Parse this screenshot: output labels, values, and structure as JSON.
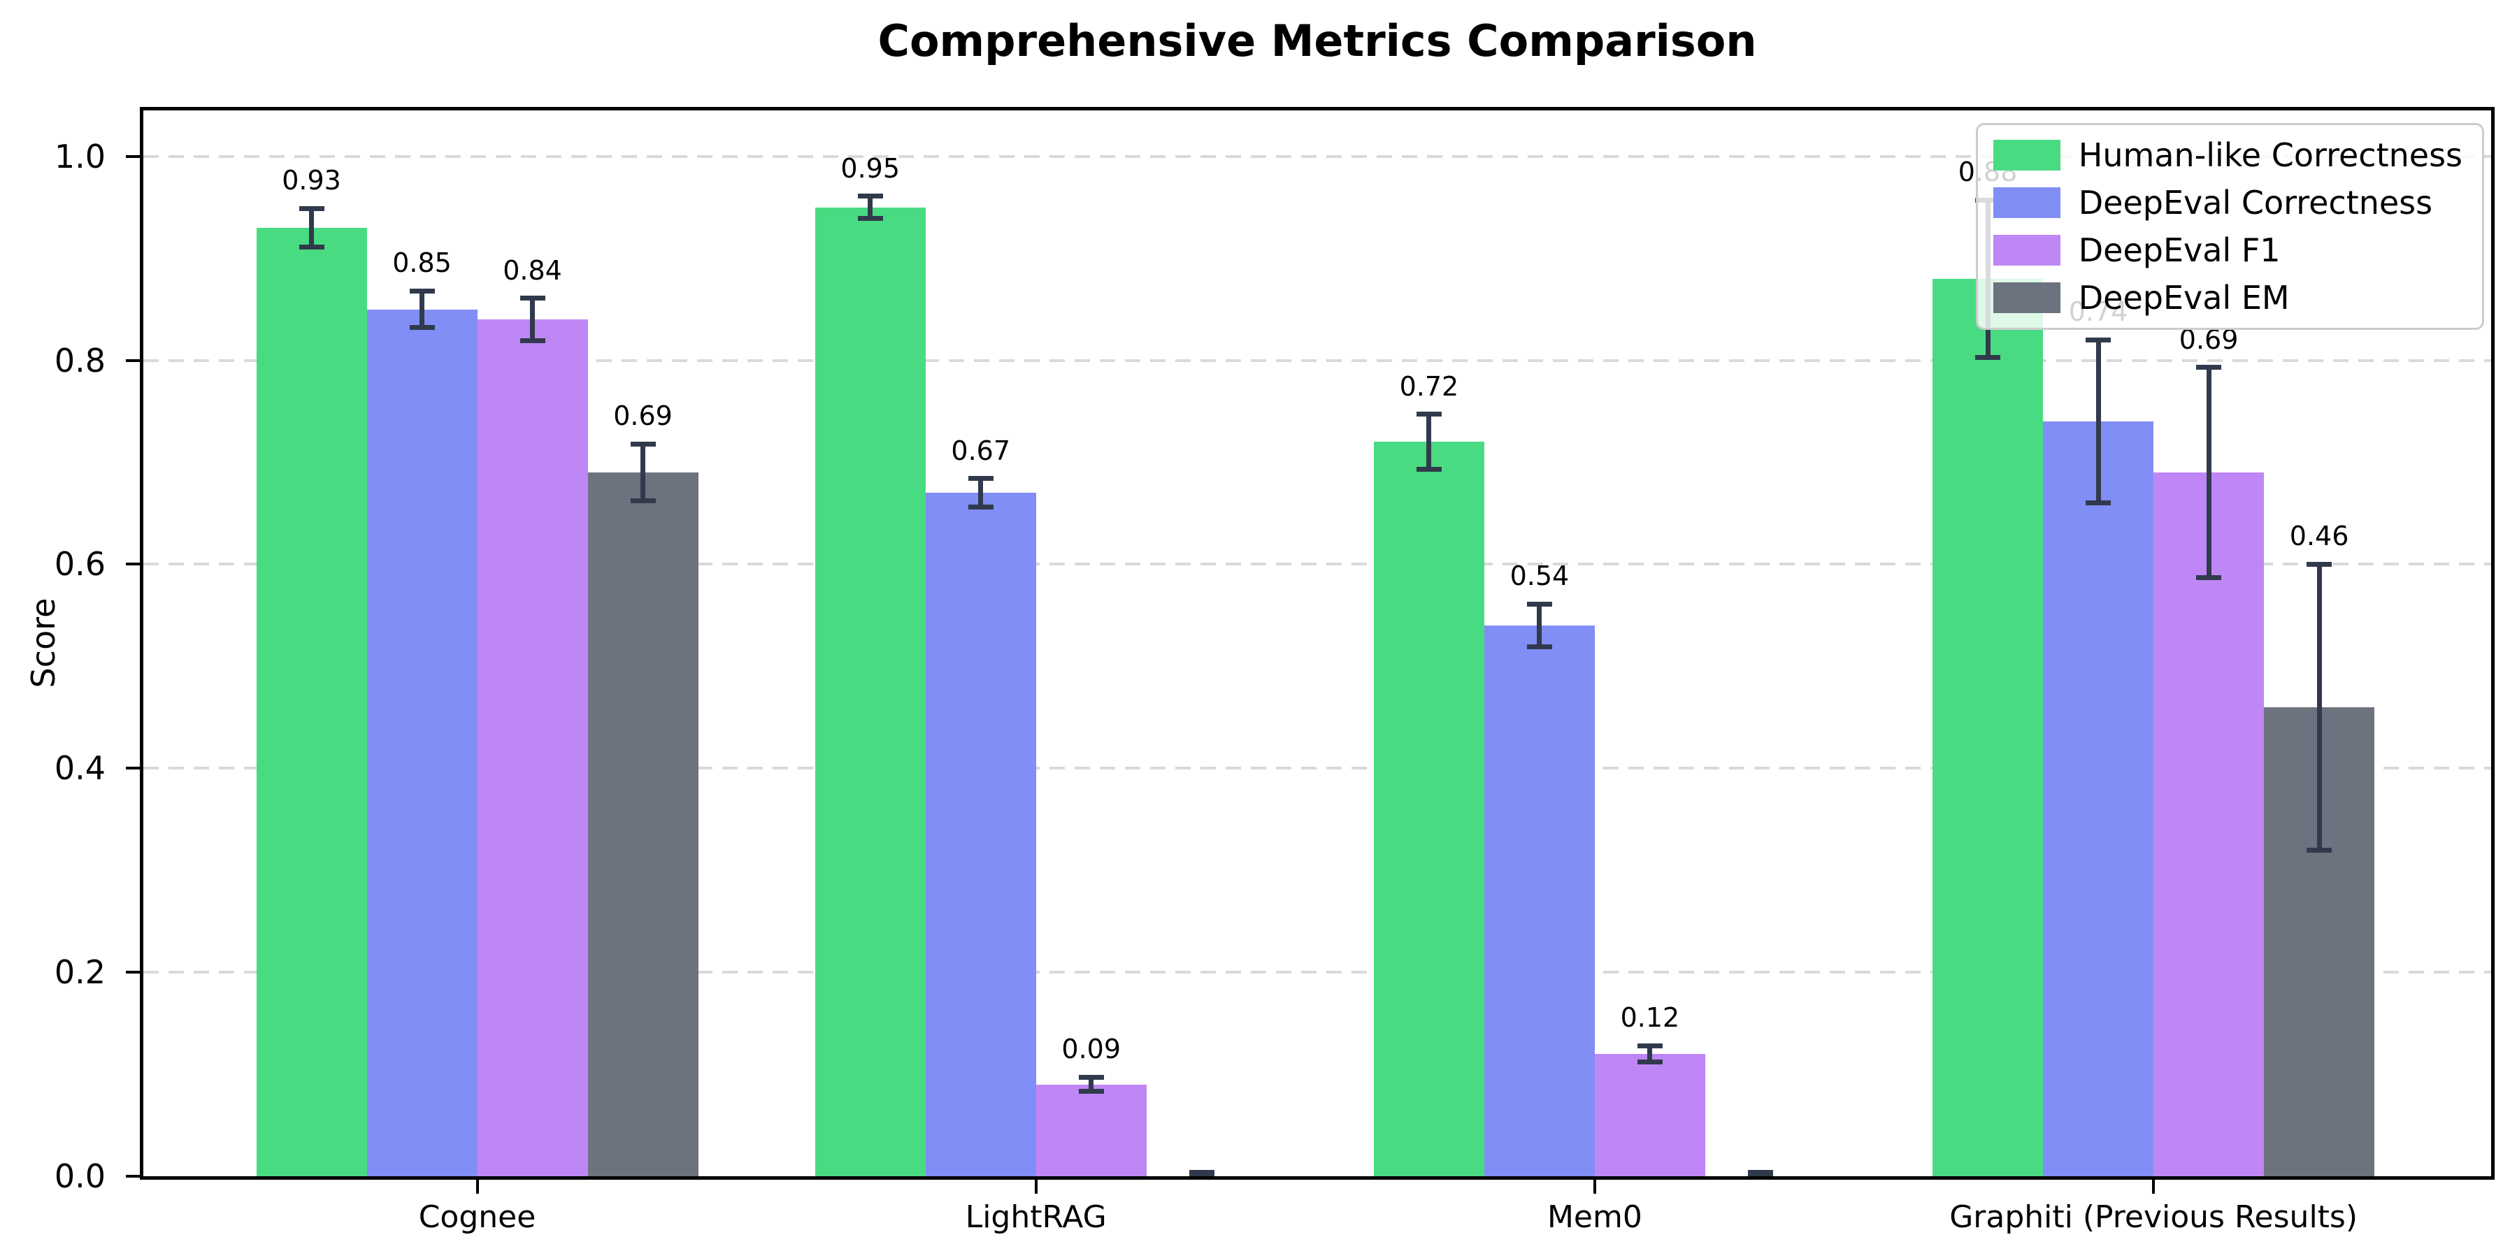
{
  "chart_data": {
    "type": "bar",
    "title": "Comprehensive Metrics Comparison",
    "xlabel": "",
    "ylabel": "Score",
    "categories": [
      "Cognee",
      "LightRAG",
      "Mem0",
      "Graphiti (Previous Results)"
    ],
    "series": [
      {
        "name": "Human-like Correctness",
        "color": "#49db82",
        "values": [
          0.93,
          0.95,
          0.72,
          0.88
        ],
        "errors": [
          0.019,
          0.011,
          0.027,
          0.077
        ],
        "labels": [
          "0.93",
          "0.95",
          "0.72",
          "0.88"
        ]
      },
      {
        "name": "DeepEval Correctness",
        "color": "#818ef5",
        "values": [
          0.85,
          0.67,
          0.54,
          0.74
        ],
        "errors": [
          0.018,
          0.014,
          0.021,
          0.08
        ],
        "labels": [
          "0.85",
          "0.67",
          "0.54",
          "0.74"
        ]
      },
      {
        "name": "DeepEval F1",
        "color": "#bf87f5",
        "values": [
          0.84,
          0.09,
          0.12,
          0.69
        ],
        "errors": [
          0.021,
          0.007,
          0.008,
          0.103
        ],
        "labels": [
          "0.84",
          "0.09",
          "0.12",
          "0.69"
        ]
      },
      {
        "name": "DeepEval EM",
        "color": "#6d737e",
        "values": [
          0.69,
          0.0,
          0.0,
          0.46
        ],
        "errors": [
          0.028,
          0.004,
          0.004,
          0.14
        ],
        "labels": [
          "0.69",
          "",
          "",
          "0.46"
        ]
      }
    ],
    "yticks": [
      0.0,
      0.2,
      0.4,
      0.6,
      0.8,
      1.0
    ],
    "ytick_labels": [
      "0.0",
      "0.2",
      "0.4",
      "0.6",
      "0.8",
      "1.0"
    ],
    "ylim": [
      0,
      1.045
    ],
    "grid": "horizontal-dashed",
    "legend_position": "upper right",
    "error_bar_color": "#313a4c",
    "grid_color": "#d9d9d9"
  }
}
